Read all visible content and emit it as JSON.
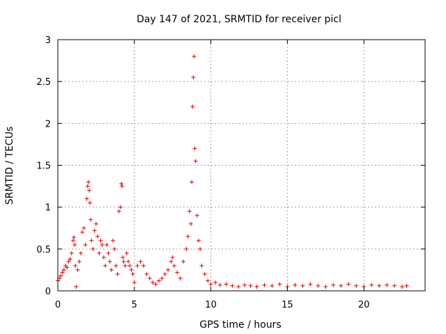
{
  "chart_data": {
    "type": "scatter",
    "title": "Day 147 of 2021, SRMTID for receiver picl",
    "xlabel": "GPS time / hours",
    "ylabel": "SRMTID / TECUs",
    "xlim": [
      0,
      24
    ],
    "ylim": [
      0,
      3
    ],
    "xticks": [
      0,
      5,
      10,
      15,
      20
    ],
    "xtick_labels": [
      "0",
      "5",
      "10",
      "15",
      "20"
    ],
    "yticks": [
      0,
      0.5,
      1,
      1.5,
      2,
      2.5,
      3
    ],
    "ytick_labels": [
      "0",
      "0.5",
      "1",
      "1.5",
      "2",
      "2.5",
      "3"
    ],
    "grid": true,
    "marker": "+",
    "series": [
      {
        "name": "SRMTID",
        "color": "#e00000",
        "x": [
          0.0,
          0.1,
          0.2,
          0.3,
          0.4,
          0.5,
          0.6,
          0.7,
          0.8,
          0.9,
          1.0,
          1.05,
          1.1,
          1.15,
          1.2,
          1.3,
          1.4,
          1.5,
          1.6,
          1.7,
          1.8,
          1.9,
          1.95,
          2.0,
          2.05,
          2.1,
          2.15,
          2.2,
          2.3,
          2.4,
          2.5,
          2.6,
          2.7,
          2.8,
          2.9,
          3.0,
          3.1,
          3.2,
          3.3,
          3.4,
          3.5,
          3.6,
          3.7,
          3.8,
          3.9,
          4.0,
          4.1,
          4.15,
          4.2,
          4.25,
          4.3,
          4.4,
          4.5,
          4.6,
          4.7,
          4.8,
          4.9,
          5.0,
          5.2,
          5.4,
          5.6,
          5.8,
          6.0,
          6.2,
          6.4,
          6.6,
          6.8,
          7.0,
          7.2,
          7.4,
          7.5,
          7.6,
          7.8,
          8.0,
          8.2,
          8.4,
          8.5,
          8.6,
          8.7,
          8.75,
          8.8,
          8.85,
          8.9,
          8.95,
          9.0,
          9.1,
          9.2,
          9.3,
          9.4,
          9.6,
          9.8,
          10.0,
          10.3,
          10.6,
          11.0,
          11.4,
          11.8,
          12.2,
          12.6,
          13.0,
          13.5,
          14.0,
          14.5,
          15.0,
          15.5,
          16.0,
          16.5,
          17.0,
          17.5,
          18.0,
          18.5,
          19.0,
          19.5,
          20.0,
          20.5,
          21.0,
          21.5,
          22.0,
          22.5,
          22.8
        ],
        "y": [
          0.12,
          0.15,
          0.18,
          0.22,
          0.25,
          0.3,
          0.28,
          0.35,
          0.38,
          0.45,
          0.6,
          0.64,
          0.55,
          0.3,
          0.05,
          0.25,
          0.35,
          0.45,
          0.7,
          0.75,
          0.55,
          1.1,
          1.25,
          1.3,
          1.2,
          1.05,
          0.85,
          0.6,
          0.5,
          0.72,
          0.8,
          0.65,
          0.45,
          0.6,
          0.55,
          0.4,
          0.3,
          0.55,
          0.45,
          0.35,
          0.25,
          0.6,
          0.5,
          0.3,
          0.2,
          0.95,
          1.0,
          1.28,
          1.25,
          0.4,
          0.35,
          0.3,
          0.45,
          0.35,
          0.3,
          0.25,
          0.2,
          0.1,
          0.3,
          0.35,
          0.3,
          0.2,
          0.15,
          0.1,
          0.08,
          0.12,
          0.15,
          0.2,
          0.25,
          0.35,
          0.4,
          0.3,
          0.22,
          0.15,
          0.35,
          0.5,
          0.65,
          0.95,
          0.8,
          1.3,
          2.2,
          2.55,
          2.8,
          1.7,
          1.55,
          0.9,
          0.6,
          0.5,
          0.3,
          0.2,
          0.12,
          0.08,
          0.1,
          0.07,
          0.08,
          0.06,
          0.05,
          0.07,
          0.06,
          0.05,
          0.07,
          0.06,
          0.08,
          0.05,
          0.07,
          0.06,
          0.08,
          0.06,
          0.05,
          0.07,
          0.06,
          0.08,
          0.06,
          0.05,
          0.07,
          0.06,
          0.07,
          0.06,
          0.05,
          0.06
        ]
      }
    ]
  }
}
